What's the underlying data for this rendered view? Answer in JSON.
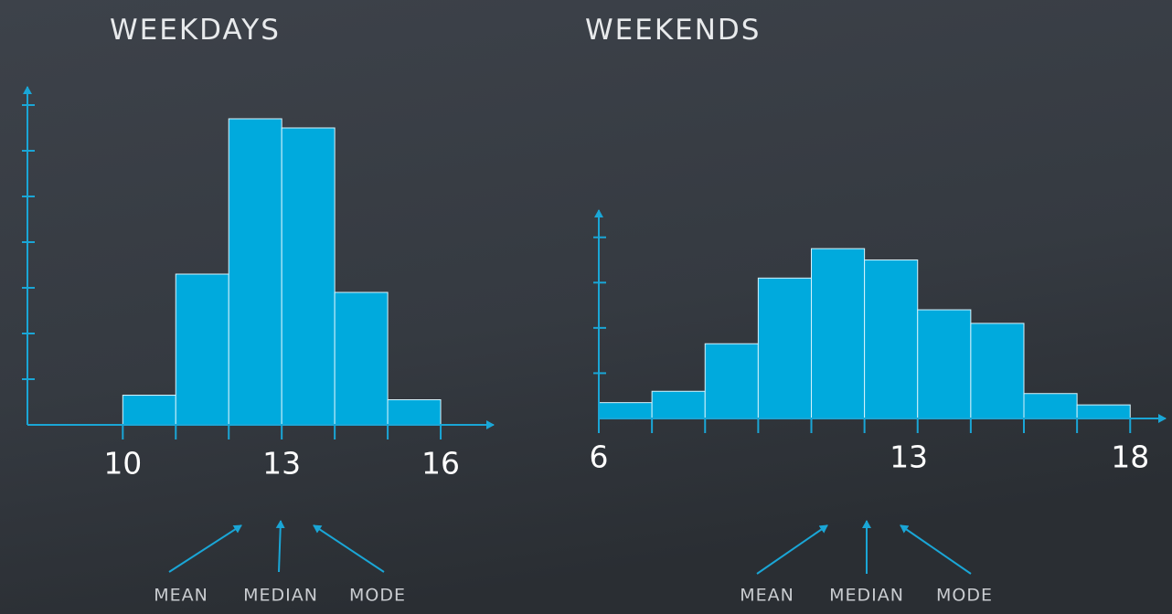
{
  "chart_data": [
    {
      "type": "histogram",
      "title": "WEEKDAYS",
      "bins": [
        10,
        11,
        12,
        13,
        14,
        15,
        16
      ],
      "values": [
        0.65,
        3.3,
        6.7,
        6.5,
        2.9,
        0.55
      ],
      "color": "#00aadd",
      "xlim": [
        8.2,
        17
      ],
      "xticks": [
        10,
        13,
        16
      ],
      "ylim": [
        0,
        7.4
      ],
      "yticks": [
        1,
        2,
        3,
        4,
        5,
        6,
        7
      ],
      "annotations": [
        "MEAN",
        "MEDIAN",
        "MODE"
      ]
    },
    {
      "type": "histogram",
      "title": "WEEKENDS",
      "bins": [
        6,
        7.2,
        8.4,
        9.6,
        10.8,
        12,
        13.2,
        14.4,
        15.6,
        16.8,
        18
      ],
      "values": [
        0.35,
        0.6,
        1.65,
        3.1,
        3.75,
        3.5,
        2.4,
        2.1,
        0.55,
        0.3
      ],
      "color": "#00aadd",
      "xlim": [
        6,
        18.8
      ],
      "xticks": [
        6,
        13,
        18
      ],
      "ylim": [
        0,
        4.6
      ],
      "yticks": [
        1,
        2,
        3,
        4
      ],
      "annotations": [
        "MEAN",
        "MEDIAN",
        "MODE"
      ]
    }
  ]
}
